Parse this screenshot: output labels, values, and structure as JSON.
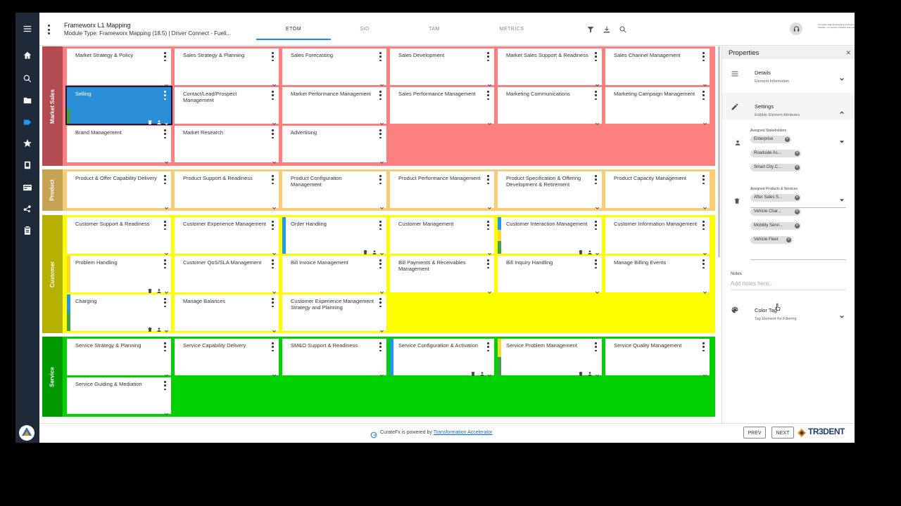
{
  "header": {
    "title": "Frameworx L1 Mapping",
    "subtitle": "Module Type: Frameworx Mapping (18.5)   |   Driver Connect - Fueli...",
    "tabs": [
      "ETOM",
      "SID",
      "TAM",
      "METRICS"
    ],
    "active_tab": "ETOM",
    "logo_text": "Complete Rally Reporting & Customer Portfolio Solution - for service providers and enterprise"
  },
  "rail": {
    "items": [
      "menu-icon",
      "home-icon",
      "search-icon",
      "folder-icon",
      "tag-icon",
      "star-icon",
      "book-icon",
      "card-icon",
      "graph-icon",
      "clipboard-icon"
    ],
    "active": "home-icon"
  },
  "bands": [
    {
      "label": "Market Sales",
      "color": "#b24b52",
      "bg": "#fd8080",
      "rows": [
        [
          "Market Strategy & Policy",
          "Sales Strategy & Planning",
          "Sales Forecasting",
          "Sales Development",
          "Market Sales Support & Readiness",
          "Sales Channel Management"
        ],
        [
          "Selling",
          "Contact/Lead/Prospect Management",
          "Market Performance Management",
          "Sales Performance Management",
          "Marketing Communications",
          "Marketing Campaign Management"
        ],
        [
          "Brand Management",
          "Market Research",
          "Advertising"
        ]
      ]
    },
    {
      "label": "Product",
      "color": "#c6a254",
      "bg": "#f7cd78",
      "rows": [
        [
          "Product & Offer Capability Delivery",
          "Product Support & Readiness",
          "Product Configuration Management",
          "Product Performance Management",
          "Product Specification & Offering Development & Retirement",
          "Product Capacity Management"
        ]
      ]
    },
    {
      "label": "Customer",
      "color": "#b6b000",
      "bg": "#ffff00",
      "rows": [
        [
          "Customer Support & Readiness",
          "Customer Experience Management",
          "Order Handling",
          "Customer Management",
          "Customer Interaction Management",
          "Customer Information Management"
        ],
        [
          "Problem Handling",
          "Customer QoS/SLA Management",
          "Bill Invoice Management",
          "Bill Payments & Receivables Management",
          "Bill Inquiry Handling",
          "Manage Billing Events"
        ],
        [
          "Charging",
          "Manage Balances",
          "Customer Experience Management Strategy and Planning"
        ]
      ]
    },
    {
      "label": "Service",
      "color": "#009a00",
      "bg": "#00d100",
      "rows": [
        [
          "Service Strategy & Planning",
          "Service Capability Delivery",
          "SM&O Support & Readiness",
          "Service Configuration & Activation",
          "Service Problem Management",
          "Service Quality Management"
        ],
        [
          "Service Guiding & Mediation"
        ]
      ]
    }
  ],
  "selected_card": "Selling",
  "properties": {
    "title": "Properties",
    "details": {
      "title": "Details",
      "subtitle": "Element Information"
    },
    "settings": {
      "title": "Settings",
      "subtitle": "Editible Element Attributes"
    },
    "stakeholders_label": "Assigned Stakeholders",
    "stakeholders": [
      "Enterprise",
      "Roadside As...",
      "Smart City C..."
    ],
    "products_label": "Assigned Products & Services",
    "products": [
      "After Sales S...",
      "Vehicle Char...",
      "Mobility Servi...",
      "Vehicle Fleet"
    ],
    "notes_label": "Notes",
    "notes_placeholder": "Add notes here...",
    "color_tag": {
      "title": "Color Tag",
      "subtitle": "Tag Element for Filtering"
    }
  },
  "footer": {
    "powered_prefix": "CurateFx is powered by ",
    "powered_link": "Transformation Accelerator",
    "prev": "PREV",
    "next": "NEXT",
    "brand": "TR3DENT"
  },
  "colors": {
    "rail": "#1e2a3a",
    "accent": "#1e88e5",
    "selected": "#2b8fd8",
    "marker_blue": "#2196f3",
    "marker_yellow": "#fdd835",
    "marker_green": "#43a047"
  }
}
